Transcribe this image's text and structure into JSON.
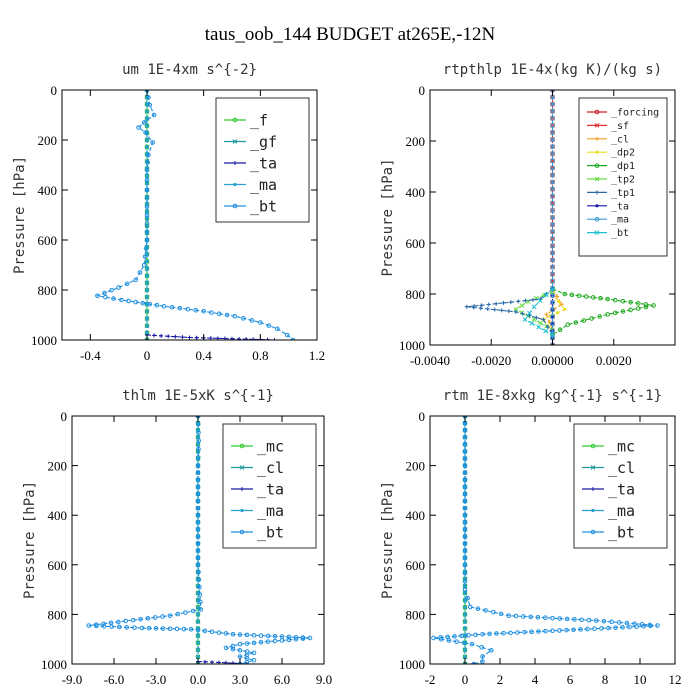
{
  "title": "taus_oob_144  BUDGET at265E,-12N",
  "chart_data": [
    {
      "type": "line",
      "title": "um  1E-4xm s^{-2}",
      "ylabel": "Pressure [hPa]",
      "xlabel": "",
      "xlim": [
        -0.6,
        1.2
      ],
      "ylim": [
        1000,
        0
      ],
      "xticks": [
        -0.4,
        0,
        0.4,
        0.8,
        1.2
      ],
      "xtick_labels": [
        "-0.4",
        "0",
        "0.4",
        "0.8",
        "1.2"
      ],
      "yticks": [
        0,
        200,
        400,
        600,
        800,
        1000
      ],
      "ytick_labels": [
        "0",
        "200",
        "400",
        "600",
        "800",
        "1000"
      ],
      "legend": {
        "position": "top-right",
        "size": "large"
      },
      "series": [
        {
          "name": "_f",
          "color": "#2ecc2e",
          "points": [
            [
              0,
              0
            ],
            [
              0,
              200
            ],
            [
              0,
              400
            ],
            [
              0,
              600
            ],
            [
              0,
              800
            ],
            [
              0,
              1000
            ]
          ]
        },
        {
          "name": "_gf",
          "color": "#1f9a9a",
          "points": [
            [
              0,
              0
            ],
            [
              0,
              1000
            ]
          ]
        },
        {
          "name": "_ta",
          "color": "#1a1aa8",
          "points": [
            [
              0,
              980
            ],
            [
              0.3,
              990
            ],
            [
              0.6,
              995
            ],
            [
              0.9,
              1000
            ]
          ]
        },
        {
          "name": "_ma",
          "color": "#2aa0d0",
          "points": [
            [
              0,
              0
            ],
            [
              0,
              1000
            ]
          ]
        },
        {
          "name": "_bt",
          "color": "#1e8fe0",
          "points": [
            [
              0,
              0
            ],
            [
              0.02,
              60
            ],
            [
              0.05,
              100
            ],
            [
              -0.02,
              130
            ],
            [
              -0.06,
              150
            ],
            [
              -0.01,
              170
            ],
            [
              0.04,
              210
            ],
            [
              0.01,
              260
            ],
            [
              0,
              320
            ],
            [
              0,
              400
            ],
            [
              0,
              500
            ],
            [
              0,
              600
            ],
            [
              -0.02,
              700
            ],
            [
              -0.08,
              760
            ],
            [
              -0.2,
              790
            ],
            [
              -0.35,
              823
            ],
            [
              -0.18,
              840
            ],
            [
              0.12,
              865
            ],
            [
              0.4,
              885
            ],
            [
              0.62,
              905
            ],
            [
              0.8,
              930
            ],
            [
              0.92,
              955
            ],
            [
              0.99,
              980
            ],
            [
              1.03,
              1000
            ]
          ]
        }
      ]
    },
    {
      "type": "line",
      "title": "rtpthlp  1E-4x(kg K)/(kg s)",
      "ylabel": "Pressure [hPa]",
      "xlabel": "",
      "xlim": [
        -0.004,
        0.004
      ],
      "ylim": [
        1000,
        0
      ],
      "xticks": [
        -0.004,
        -0.002,
        0,
        0.002
      ],
      "xtick_labels": [
        "-0.0040",
        "-0.0020",
        "0.00000",
        "0.0020"
      ],
      "yticks": [
        0,
        200,
        400,
        600,
        800,
        1000
      ],
      "ytick_labels": [
        "0",
        "200",
        "400",
        "600",
        "800",
        "1000"
      ],
      "legend": {
        "position": "top-right",
        "size": "small"
      },
      "series": [
        {
          "name": "_forcing",
          "color": "#cc2222",
          "points": [
            [
              0,
              0
            ],
            [
              0,
              1000
            ]
          ]
        },
        {
          "name": "_sf",
          "color": "#e03030",
          "points": [
            [
              0,
              0
            ],
            [
              0,
              1000
            ]
          ]
        },
        {
          "name": "_cl",
          "color": "#f0a020",
          "points": [
            [
              0,
              780
            ],
            [
              0.0003,
              840
            ],
            [
              -0.0002,
              880
            ],
            [
              0,
              940
            ]
          ]
        },
        {
          "name": "_dp2",
          "color": "#e8e020",
          "points": [
            [
              0,
              800
            ],
            [
              0.0004,
              860
            ],
            [
              -0.0003,
              900
            ],
            [
              0,
              950
            ]
          ]
        },
        {
          "name": "_dp1",
          "color": "#22aa22",
          "points": [
            [
              0,
              780
            ],
            [
              0.0004,
              800
            ],
            [
              0.0018,
              820
            ],
            [
              0.0033,
              845
            ],
            [
              0.0018,
              880
            ],
            [
              0.0005,
              920
            ],
            [
              0,
              960
            ]
          ]
        },
        {
          "name": "_tp2",
          "color": "#66dd44",
          "points": [
            [
              0,
              790
            ],
            [
              -0.0008,
              830
            ],
            [
              -0.0012,
              860
            ],
            [
              -0.0006,
              900
            ],
            [
              0,
              940
            ]
          ]
        },
        {
          "name": "_tp1",
          "color": "#2a6aa8",
          "points": [
            [
              0,
              780
            ],
            [
              -0.0004,
              820
            ],
            [
              -0.0028,
              850
            ],
            [
              -0.0012,
              870
            ],
            [
              -0.0003,
              900
            ],
            [
              0,
              960
            ]
          ]
        },
        {
          "name": "_ta",
          "color": "#1a1aa8",
          "points": [
            [
              0,
              780
            ],
            [
              0,
              1000
            ]
          ]
        },
        {
          "name": "_ma",
          "color": "#3a9ad0",
          "points": [
            [
              0,
              0
            ],
            [
              0,
              1000
            ]
          ]
        },
        {
          "name": "_bt",
          "color": "#20c0d0",
          "points": [
            [
              0,
              780
            ],
            [
              -0.0006,
              850
            ],
            [
              -0.0009,
              900
            ],
            [
              0,
              960
            ]
          ]
        }
      ]
    },
    {
      "type": "line",
      "title": "thlm  1E-5xK s^{-1}",
      "ylabel": "Pressure [hPa]",
      "xlabel": "",
      "xlim": [
        -9,
        9
      ],
      "ylim": [
        1000,
        0
      ],
      "xticks": [
        -9,
        -6,
        -3,
        0,
        3,
        6,
        9
      ],
      "xtick_labels": [
        "-9.0",
        "-6.0",
        "-3.0",
        "0.0",
        "3.0",
        "6.0",
        "9.0"
      ],
      "yticks": [
        0,
        200,
        400,
        600,
        800,
        1000
      ],
      "ytick_labels": [
        "0",
        "200",
        "400",
        "600",
        "800",
        "1000"
      ],
      "legend": {
        "position": "top-right",
        "size": "large"
      },
      "series": [
        {
          "name": "_mc",
          "color": "#2ecc2e",
          "points": [
            [
              0,
              0
            ],
            [
              0,
              1000
            ]
          ]
        },
        {
          "name": "_cl",
          "color": "#1f9a9a",
          "points": [
            [
              0,
              0
            ],
            [
              0,
              1000
            ]
          ]
        },
        {
          "name": "_ta",
          "color": "#1a1aa8",
          "points": [
            [
              0,
              990
            ],
            [
              2,
              995
            ],
            [
              3.5,
              1000
            ]
          ]
        },
        {
          "name": "_ma",
          "color": "#2aa0d0",
          "points": [
            [
              0,
              0
            ],
            [
              0,
              1000
            ]
          ]
        },
        {
          "name": "_bt",
          "color": "#1e8fe0",
          "points": [
            [
              0,
              0
            ],
            [
              0.05,
              100
            ],
            [
              0,
              200
            ],
            [
              0,
              400
            ],
            [
              0,
              600
            ],
            [
              0.2,
              780
            ],
            [
              -2,
              805
            ],
            [
              -7.8,
              845
            ],
            [
              -4,
              855
            ],
            [
              -0.5,
              860
            ],
            [
              2.5,
              880
            ],
            [
              8,
              895
            ],
            [
              3,
              920
            ],
            [
              2,
              935
            ],
            [
              4,
              955
            ],
            [
              3,
              970
            ],
            [
              4,
              985
            ],
            [
              3,
              1000
            ]
          ]
        }
      ]
    },
    {
      "type": "line",
      "title": "rtm  1E-8xkg kg^{-1} s^{-1}",
      "ylabel": "Pressure [hPa]",
      "xlabel": "",
      "xlim": [
        -2,
        12
      ],
      "ylim": [
        1000,
        0
      ],
      "xticks": [
        -2,
        0,
        2,
        4,
        6,
        8,
        10,
        12
      ],
      "xtick_labels": [
        "-2",
        "0",
        "2",
        "4",
        "6",
        "8",
        "10",
        "12"
      ],
      "yticks": [
        0,
        200,
        400,
        600,
        800,
        1000
      ],
      "ytick_labels": [
        "0",
        "200",
        "400",
        "600",
        "800",
        "1000"
      ],
      "legend": {
        "position": "top-right",
        "size": "large"
      },
      "series": [
        {
          "name": "_mc",
          "color": "#2ecc2e",
          "points": [
            [
              0,
              0
            ],
            [
              0,
              1000
            ]
          ]
        },
        {
          "name": "_cl",
          "color": "#1f9a9a",
          "points": [
            [
              0,
              0
            ],
            [
              0,
              1000
            ]
          ]
        },
        {
          "name": "_ta",
          "color": "#1a1aa8",
          "points": [
            [
              0,
              1000
            ],
            [
              0.5,
              1000
            ]
          ]
        },
        {
          "name": "_ma",
          "color": "#2aa0d0",
          "points": [
            [
              0,
              0
            ],
            [
              0,
              1000
            ]
          ]
        },
        {
          "name": "_bt",
          "color": "#1e8fe0",
          "points": [
            [
              0,
              0
            ],
            [
              0,
              200
            ],
            [
              0,
              400
            ],
            [
              0,
              600
            ],
            [
              0,
              700
            ],
            [
              0.3,
              770
            ],
            [
              2.5,
              805
            ],
            [
              7.5,
              825
            ],
            [
              11,
              845
            ],
            [
              6.2,
              862
            ],
            [
              1,
              880
            ],
            [
              -1.8,
              895
            ],
            [
              0.4,
              920
            ],
            [
              1.5,
              945
            ],
            [
              1,
              970
            ],
            [
              1,
              990
            ],
            [
              0.5,
              1000
            ]
          ]
        }
      ]
    }
  ]
}
